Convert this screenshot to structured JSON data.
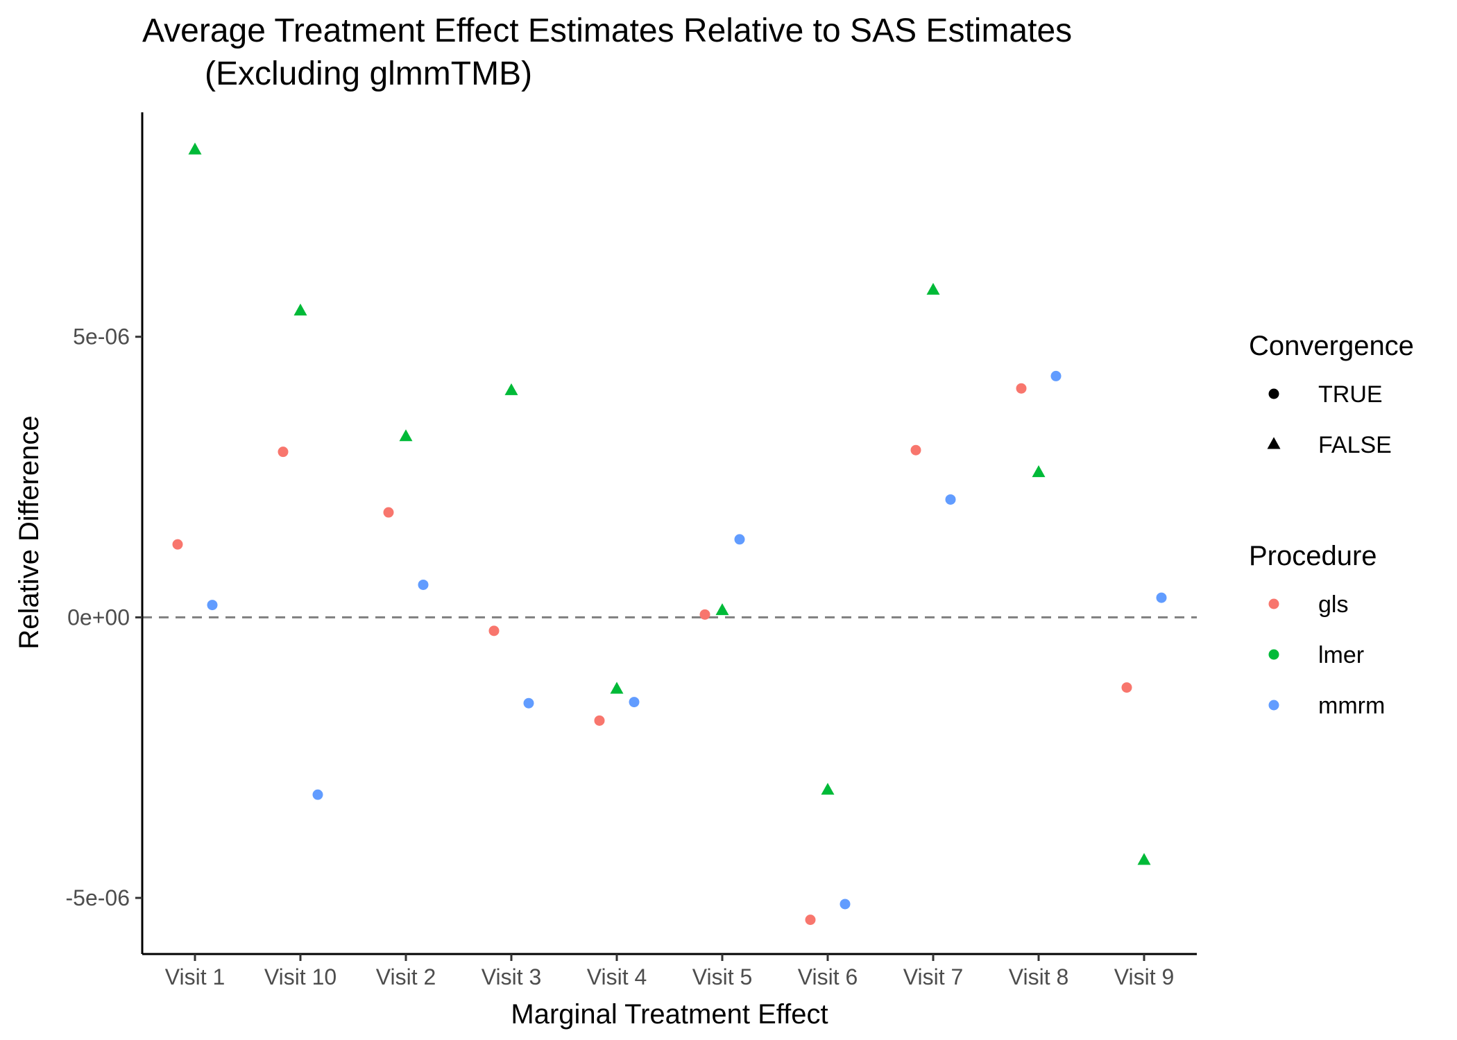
{
  "chart_data": {
    "type": "scatter",
    "title": "Average Treatment Effect Estimates Relative to SAS Estimates",
    "subtitle": "(Excluding glmmTMB)",
    "xlabel": "Marginal Treatment Effect",
    "ylabel": "Relative Difference",
    "categories": [
      "Visit 1",
      "Visit 10",
      "Visit 2",
      "Visit 3",
      "Visit 4",
      "Visit 5",
      "Visit 6",
      "Visit 7",
      "Visit 8",
      "Visit 9"
    ],
    "ylim": [
      -6e-06,
      9e-06
    ],
    "y_ticks": [
      {
        "value": 5e-06,
        "label": "5e-06"
      },
      {
        "value": 0,
        "label": "0e+00"
      },
      {
        "value": -5e-06,
        "label": "-5e-06"
      }
    ],
    "reference_line": {
      "value": 0,
      "style": "dashed",
      "color": "#7f7f7f"
    },
    "grid": false,
    "series": [
      {
        "name": "gls",
        "color": "#F8766D",
        "points": [
          {
            "x": "Visit 1",
            "y": 1.3e-06,
            "converged": true
          },
          {
            "x": "Visit 10",
            "y": 2.95e-06,
            "converged": true
          },
          {
            "x": "Visit 2",
            "y": 1.87e-06,
            "converged": true
          },
          {
            "x": "Visit 3",
            "y": -2.4e-07,
            "converged": true
          },
          {
            "x": "Visit 4",
            "y": -1.84e-06,
            "converged": true
          },
          {
            "x": "Visit 5",
            "y": 5e-08,
            "converged": true
          },
          {
            "x": "Visit 6",
            "y": -5.39e-06,
            "converged": true
          },
          {
            "x": "Visit 7",
            "y": 2.98e-06,
            "converged": true
          },
          {
            "x": "Visit 8",
            "y": 4.08e-06,
            "converged": true
          },
          {
            "x": "Visit 9",
            "y": -1.25e-06,
            "converged": true
          }
        ]
      },
      {
        "name": "lmer",
        "color": "#00BA38",
        "points": [
          {
            "x": "Visit 1",
            "y": 8.33e-06,
            "converged": false
          },
          {
            "x": "Visit 10",
            "y": 5.46e-06,
            "converged": false
          },
          {
            "x": "Visit 2",
            "y": 3.22e-06,
            "converged": false
          },
          {
            "x": "Visit 3",
            "y": 4.04e-06,
            "converged": false
          },
          {
            "x": "Visit 4",
            "y": -1.28e-06,
            "converged": false
          },
          {
            "x": "Visit 5",
            "y": 1.2e-07,
            "converged": false
          },
          {
            "x": "Visit 6",
            "y": -3.08e-06,
            "converged": false
          },
          {
            "x": "Visit 7",
            "y": 5.83e-06,
            "converged": false
          },
          {
            "x": "Visit 8",
            "y": 2.58e-06,
            "converged": false
          },
          {
            "x": "Visit 9",
            "y": -4.33e-06,
            "converged": false
          }
        ]
      },
      {
        "name": "mmrm",
        "color": "#619CFF",
        "points": [
          {
            "x": "Visit 1",
            "y": 2.2e-07,
            "converged": true
          },
          {
            "x": "Visit 10",
            "y": -3.16e-06,
            "converged": true
          },
          {
            "x": "Visit 2",
            "y": 5.8e-07,
            "converged": true
          },
          {
            "x": "Visit 3",
            "y": -1.53e-06,
            "converged": true
          },
          {
            "x": "Visit 4",
            "y": -1.51e-06,
            "converged": true
          },
          {
            "x": "Visit 5",
            "y": 1.39e-06,
            "converged": true
          },
          {
            "x": "Visit 6",
            "y": -5.11e-06,
            "converged": true
          },
          {
            "x": "Visit 7",
            "y": 2.1e-06,
            "converged": true
          },
          {
            "x": "Visit 8",
            "y": 4.3e-06,
            "converged": true
          },
          {
            "x": "Visit 9",
            "y": 3.5e-07,
            "converged": true
          }
        ]
      }
    ],
    "legends": [
      {
        "title": "Convergence",
        "placement": "right",
        "items": [
          {
            "label": "TRUE",
            "shape": "circle",
            "color": "#000000"
          },
          {
            "label": "FALSE",
            "shape": "triangle",
            "color": "#000000"
          }
        ]
      },
      {
        "title": "Procedure",
        "placement": "right",
        "items": [
          {
            "label": "gls",
            "shape": "circle",
            "color": "#F8766D"
          },
          {
            "label": "lmer",
            "shape": "circle",
            "color": "#00BA38"
          },
          {
            "label": "mmrm",
            "shape": "circle",
            "color": "#619CFF"
          }
        ]
      }
    ]
  }
}
